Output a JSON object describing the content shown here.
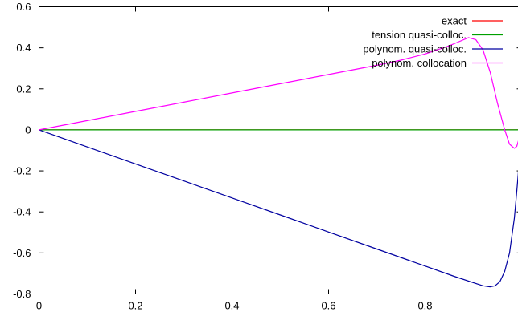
{
  "chart_data": {
    "type": "line",
    "title": "",
    "xlabel": "",
    "ylabel": "",
    "xlim": [
      0,
      1
    ],
    "ylim": [
      -0.8,
      0.6
    ],
    "grid": false,
    "legend_position": "top-right",
    "x_ticks": [
      {
        "value": 0,
        "label": "0"
      },
      {
        "value": 0.2,
        "label": "0.2"
      },
      {
        "value": 0.4,
        "label": "0.4"
      },
      {
        "value": 0.6,
        "label": "0.6"
      },
      {
        "value": 0.8,
        "label": "0.8"
      }
    ],
    "y_ticks": [
      {
        "value": 0.6,
        "label": "0.6"
      },
      {
        "value": 0.4,
        "label": "0.4"
      },
      {
        "value": 0.2,
        "label": "0.2"
      },
      {
        "value": 0,
        "label": "0"
      },
      {
        "value": -0.2,
        "label": "-0.2"
      },
      {
        "value": -0.4,
        "label": "-0.4"
      },
      {
        "value": -0.6,
        "label": "-0.6"
      },
      {
        "value": -0.8,
        "label": "-0.8"
      }
    ],
    "series": [
      {
        "name": "exact",
        "color": "#ff0000",
        "x": [
          0,
          0.5,
          1.0
        ],
        "y": [
          0,
          0,
          0
        ]
      },
      {
        "name": "tension quasi-colloc.",
        "color": "#00a000",
        "x": [
          0,
          0.5,
          1.0
        ],
        "y": [
          0,
          0,
          0
        ]
      },
      {
        "name": "polynom. quasi-colloc.",
        "color": "#0000a0",
        "x": [
          0,
          0.1,
          0.2,
          0.3,
          0.4,
          0.5,
          0.6,
          0.7,
          0.8,
          0.86,
          0.9,
          0.92,
          0.935,
          0.945,
          0.955,
          0.965,
          0.975,
          0.985,
          0.99,
          0.995,
          1.0
        ],
        "y": [
          0,
          -0.083,
          -0.166,
          -0.249,
          -0.332,
          -0.415,
          -0.498,
          -0.581,
          -0.664,
          -0.714,
          -0.745,
          -0.76,
          -0.765,
          -0.76,
          -0.74,
          -0.69,
          -0.6,
          -0.43,
          -0.3,
          -0.16,
          0.0
        ]
      },
      {
        "name": "polynom. collocation",
        "color": "#ff00ff",
        "x": [
          0,
          0.1,
          0.2,
          0.3,
          0.4,
          0.5,
          0.6,
          0.7,
          0.75,
          0.8,
          0.85,
          0.87,
          0.89,
          0.905,
          0.92,
          0.935,
          0.95,
          0.965,
          0.975,
          0.985,
          0.99,
          0.995,
          1.0
        ],
        "y": [
          0,
          0.045,
          0.09,
          0.135,
          0.18,
          0.225,
          0.27,
          0.315,
          0.34,
          0.37,
          0.41,
          0.43,
          0.45,
          0.44,
          0.39,
          0.28,
          0.13,
          0.0,
          -0.07,
          -0.09,
          -0.08,
          -0.04,
          0.01
        ]
      }
    ]
  }
}
